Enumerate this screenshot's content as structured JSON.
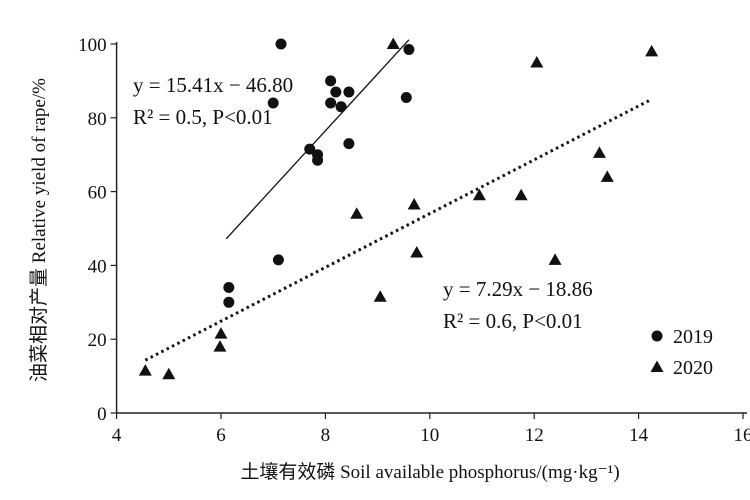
{
  "chart_data": {
    "type": "scatter",
    "xlabel": "土壤有效磷 Soil available phosphorus/(mg·kg⁻¹)",
    "ylabel": "油菜相对产量 Relative yield of rape/%",
    "xlim": [
      4,
      16
    ],
    "ylim": [
      0,
      100
    ],
    "x_ticks": [
      "4",
      "6",
      "8",
      "10",
      "12",
      "14",
      "16"
    ],
    "y_ticks": [
      "0",
      "20",
      "40",
      "60",
      "80",
      "100"
    ],
    "grid": false,
    "legend_position": "bottom-right",
    "series": [
      {
        "name": "2019",
        "marker": "circle",
        "points": [
          [
            7.15,
            100
          ],
          [
            9.6,
            98.5
          ],
          [
            8.1,
            90
          ],
          [
            8.2,
            87
          ],
          [
            8.45,
            87
          ],
          [
            8.1,
            84
          ],
          [
            7.0,
            84
          ],
          [
            8.3,
            83
          ],
          [
            9.55,
            85.5
          ],
          [
            7.7,
            71.5
          ],
          [
            7.85,
            70
          ],
          [
            7.85,
            68.5
          ],
          [
            8.45,
            73
          ],
          [
            7.1,
            41.5
          ],
          [
            6.15,
            34
          ],
          [
            6.15,
            30
          ]
        ],
        "fit": {
          "slope": 15.41,
          "intercept": -46.8,
          "x_range": [
            6.1,
            9.6
          ],
          "style": "solid",
          "equation": "y = 15.41x − 46.80",
          "stats": "R² = 0.5, P<0.01"
        }
      },
      {
        "name": "2020",
        "marker": "triangle",
        "points": [
          [
            9.3,
            100
          ],
          [
            14.25,
            98
          ],
          [
            12.05,
            95
          ],
          [
            13.25,
            70.5
          ],
          [
            13.4,
            64
          ],
          [
            8.6,
            54
          ],
          [
            9.7,
            56.5
          ],
          [
            10.95,
            59
          ],
          [
            11.75,
            59
          ],
          [
            9.75,
            43.5
          ],
          [
            12.4,
            41.5
          ],
          [
            9.05,
            31.5
          ],
          [
            6.0,
            21.5
          ],
          [
            5.98,
            18
          ],
          [
            4.55,
            11.5
          ],
          [
            5.0,
            10.5
          ]
        ],
        "fit": {
          "slope": 7.29,
          "intercept": -18.86,
          "x_range": [
            4.55,
            14.25
          ],
          "style": "dotted",
          "equation": "y = 7.29x − 18.86",
          "stats": "R² = 0.6, P<0.01"
        }
      }
    ]
  }
}
